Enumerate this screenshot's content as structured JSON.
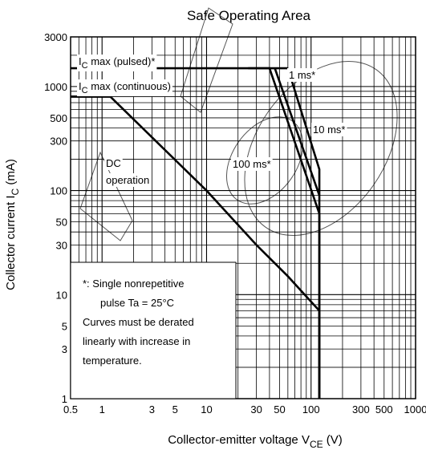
{
  "chart_data": {
    "type": "line",
    "title": "Safe Operating Area",
    "xlabel": {
      "main": "Collector-emitter voltage",
      "symbol": "V",
      "sub": "CE",
      "unit": "(V)"
    },
    "ylabel": {
      "main": "Collector current",
      "symbol": "I",
      "sub": "C",
      "unit": "(mA)"
    },
    "x_scale": "log",
    "y_scale": "log",
    "xlim": [
      0.5,
      1000
    ],
    "ylim": [
      1,
      3000
    ],
    "x_ticks": [
      {
        "value": 0.5,
        "label": "0.5"
      },
      {
        "value": 1,
        "label": "1"
      },
      {
        "value": 3,
        "label": "3"
      },
      {
        "value": 5,
        "label": "5"
      },
      {
        "value": 10,
        "label": "10"
      },
      {
        "value": 30,
        "label": "30"
      },
      {
        "value": 50,
        "label": "50"
      },
      {
        "value": 100,
        "label": "100"
      },
      {
        "value": 300,
        "label": "300"
      },
      {
        "value": 500,
        "label": "500"
      },
      {
        "value": 1000,
        "label": "1000"
      }
    ],
    "y_ticks": [
      {
        "value": 1,
        "label": "1"
      },
      {
        "value": 3,
        "label": "3"
      },
      {
        "value": 5,
        "label": "5"
      },
      {
        "value": 10,
        "label": "10"
      },
      {
        "value": 30,
        "label": "30"
      },
      {
        "value": 50,
        "label": "50"
      },
      {
        "value": 100,
        "label": "100"
      },
      {
        "value": 300,
        "label": "300"
      },
      {
        "value": 500,
        "label": "500"
      },
      {
        "value": 1000,
        "label": "1000"
      },
      {
        "value": 3000,
        "label": "3000"
      }
    ],
    "grid": true,
    "series": [
      {
        "name": "DC operation",
        "x": [
          0.5,
          1.2,
          10,
          30,
          60,
          120,
          120
        ],
        "y": [
          800,
          800,
          100,
          30,
          15,
          7,
          1
        ]
      },
      {
        "name": "100 ms*",
        "x": [
          25,
          40,
          120,
          120
        ],
        "y": [
          1500,
          1500,
          60,
          1
        ]
      },
      {
        "name": "10 ms*",
        "x": [
          45,
          120
        ],
        "y": [
          1500,
          90
        ]
      },
      {
        "name": "1 ms*",
        "x": [
          60,
          120,
          120
        ],
        "y": [
          1500,
          160,
          1
        ]
      }
    ],
    "limits": [
      {
        "name": "IC max (pulsed)*",
        "value": 1500,
        "x_range": [
          0.5,
          60
        ]
      },
      {
        "name": "IC max (continuous)",
        "value": 800,
        "x_range": [
          0.5,
          1.2
        ]
      }
    ],
    "annotations": [
      {
        "id": "pulsed",
        "symbol": "I",
        "sub": "C",
        "text": " max (pulsed)*"
      },
      {
        "id": "continuous",
        "symbol": "I",
        "sub": "C",
        "text": " max (continuous)"
      },
      {
        "id": "dc1",
        "text": "DC"
      },
      {
        "id": "dc2",
        "text": "operation"
      },
      {
        "id": "ms1",
        "text": "1 ms*"
      },
      {
        "id": "ms10",
        "text": "10 ms*"
      },
      {
        "id": "ms100",
        "text": "100 ms*"
      }
    ],
    "note_lines": [
      "*:  Single nonrepetitive",
      "pulse   Ta = 25°C",
      "Curves must be derated",
      "linearly with increase in",
      "temperature."
    ]
  }
}
